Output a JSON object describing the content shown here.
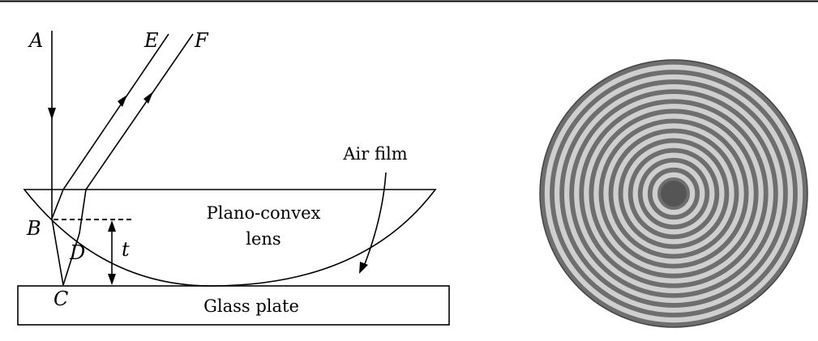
{
  "diagram": {
    "point_labels": {
      "A": "A",
      "B": "B",
      "C": "C",
      "D": "D",
      "E": "E",
      "F": "F",
      "t": "t"
    },
    "text_labels": {
      "air_film": "Air film",
      "lens_line1": "Plano-convex",
      "lens_line2": "lens",
      "glass_plate": "Glass plate"
    }
  },
  "rings_figure": {
    "central_spot": "dark",
    "bright_ring_count": 12,
    "colors": {
      "dark": "#6e6e6e",
      "light": "#cfcfcf",
      "center": "#555555"
    }
  }
}
